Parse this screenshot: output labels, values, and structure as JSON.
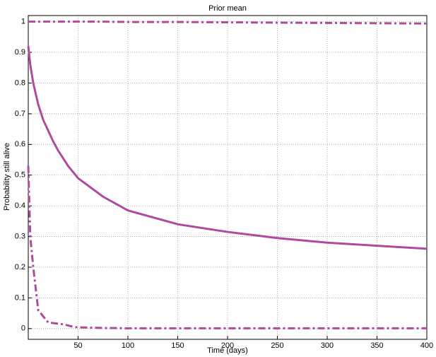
{
  "chart_data": {
    "type": "line",
    "title": "Prior mean",
    "x_label": "Time (days)",
    "y_label": "Probability still alive",
    "x": [
      0,
      2,
      5,
      10,
      15,
      20,
      25,
      30,
      35,
      40,
      45,
      50,
      75,
      100,
      150,
      200,
      250,
      300,
      350,
      400
    ],
    "series": [
      {
        "color": "#b04a9e",
        "line_style": "dashdot",
        "values": [
          1,
          1,
          1,
          1,
          1,
          1,
          1,
          1,
          1,
          1,
          1,
          1,
          1,
          0.999,
          0.999,
          0.998,
          0.997,
          0.996,
          0.995,
          0.994
        ]
      },
      {
        "color": "#b04a9e",
        "line_style": "solid",
        "values": [
          0.92,
          0.86,
          0.8,
          0.73,
          0.68,
          0.645,
          0.61,
          0.58,
          0.555,
          0.53,
          0.51,
          0.49,
          0.43,
          0.385,
          0.34,
          0.315,
          0.295,
          0.28,
          0.27,
          0.26
        ]
      },
      {
        "color": "#b04a9e",
        "line_style": "dashdot",
        "values": [
          0.53,
          0.3,
          0.2,
          0.06,
          0.04,
          0.02,
          0.018,
          0.016,
          0.014,
          0.01,
          0.006,
          0.004,
          0.002,
          0.001,
          0.001,
          0.001,
          0.001,
          0.001,
          0.001,
          0.001
        ]
      }
    ],
    "xlim": [
      0,
      400
    ],
    "xticks": [
      50,
      100,
      150,
      200,
      250,
      300,
      350,
      400
    ],
    "ylim": [
      -0.035,
      1.02
    ],
    "yticks": [
      0,
      0.1,
      0.2,
      0.3,
      0.4,
      0.5,
      0.6,
      0.7,
      0.8,
      0.9,
      1
    ],
    "grid": true
  }
}
